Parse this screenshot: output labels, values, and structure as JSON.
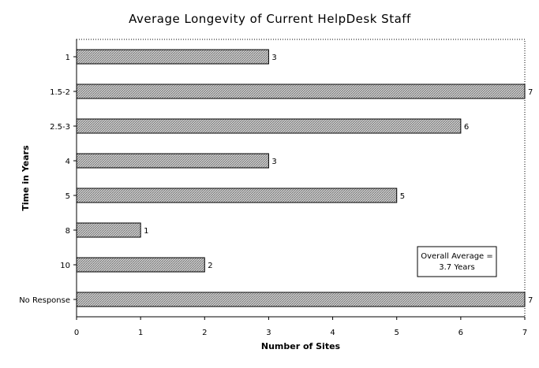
{
  "chart_data": {
    "type": "bar",
    "orientation": "horizontal",
    "title": "Average Longevity of Current HelpDesk Staff",
    "xlabel": "Number of Sites",
    "ylabel": "Time in Years",
    "categories": [
      "1",
      "1.5-2",
      "2.5-3",
      "4",
      "5",
      "8",
      "10",
      "No Response"
    ],
    "values": [
      3,
      7,
      6,
      3,
      5,
      1,
      2,
      7
    ],
    "xlim": [
      0,
      7
    ],
    "xticks": [
      "0",
      "1",
      "2",
      "3",
      "4",
      "5",
      "6",
      "7"
    ],
    "grid": false,
    "bar_fill": "#bdbdbd",
    "annotation": {
      "line1": "Overall Average =",
      "line2": "3.7 Years",
      "placement": "lower-right"
    }
  }
}
